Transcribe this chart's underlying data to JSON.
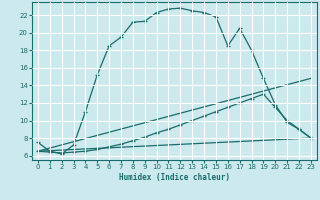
{
  "title": "",
  "xlabel": "Humidex (Indice chaleur)",
  "background_color": "#cce9ee",
  "line_color": "#1a6b6b",
  "grid_color": "#ffffff",
  "xlim": [
    -0.5,
    23.5
  ],
  "ylim": [
    5.5,
    23.5
  ],
  "yticks": [
    6,
    8,
    10,
    12,
    14,
    16,
    18,
    20,
    22
  ],
  "xticks": [
    0,
    1,
    2,
    3,
    4,
    5,
    6,
    7,
    8,
    9,
    10,
    11,
    12,
    13,
    14,
    15,
    16,
    17,
    18,
    19,
    20,
    21,
    22,
    23
  ],
  "curve1_x": [
    0,
    1,
    2,
    3,
    4,
    5,
    6,
    7,
    8,
    9,
    10,
    11,
    12,
    13,
    14,
    15,
    16,
    17,
    18,
    19,
    20,
    21,
    22,
    23
  ],
  "curve1_y": [
    7.5,
    6.5,
    6.2,
    7.2,
    11.0,
    15.2,
    18.5,
    19.5,
    21.2,
    21.3,
    22.3,
    22.7,
    22.8,
    22.5,
    22.3,
    21.8,
    18.5,
    20.5,
    18.0,
    14.8,
    11.8,
    9.8,
    9.0,
    8.0
  ],
  "curve2_x": [
    0,
    1,
    2,
    3,
    4,
    5,
    6,
    7,
    8,
    9,
    10,
    11,
    12,
    13,
    14,
    15,
    16,
    17,
    18,
    19,
    20,
    21,
    22,
    23
  ],
  "curve2_y": [
    6.5,
    6.4,
    6.3,
    6.4,
    6.5,
    6.7,
    7.0,
    7.3,
    7.7,
    8.1,
    8.6,
    9.0,
    9.5,
    10.0,
    10.5,
    11.0,
    11.5,
    12.0,
    12.5,
    13.0,
    11.5,
    10.0,
    9.0,
    8.0
  ],
  "curve3_x": [
    0,
    23
  ],
  "curve3_y": [
    6.5,
    8.0
  ],
  "curve4_x": [
    0,
    23
  ],
  "curve4_y": [
    6.5,
    14.8
  ]
}
